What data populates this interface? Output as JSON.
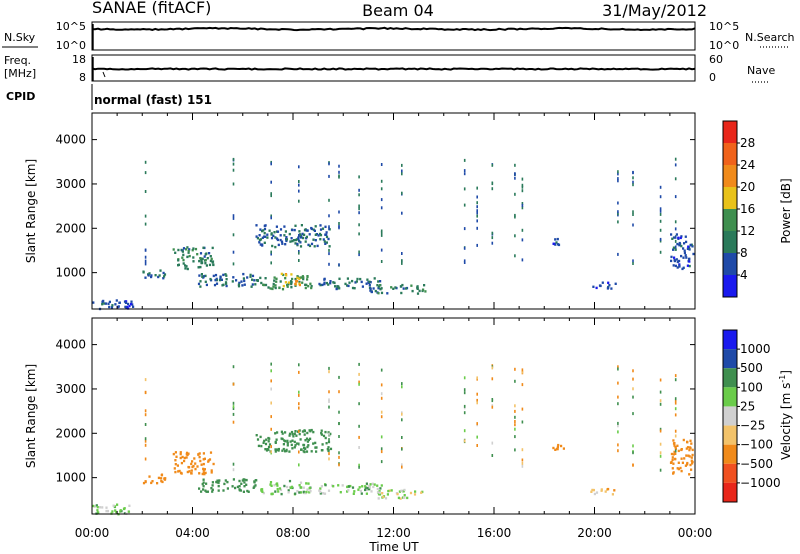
{
  "header": {
    "station": "SANAE (fitACF)",
    "beam": "Beam 04",
    "date": "31/May/2012"
  },
  "strip_nsky": {
    "left_label": "N.Sky",
    "right_label": "N.Search",
    "ticks_left": [
      "10^5",
      "10^0"
    ],
    "ticks_right": [
      "10^5",
      "10^0"
    ]
  },
  "strip_freq": {
    "left_label_line1": "Freq.",
    "left_label_line2": "[MHz]",
    "right_label": "Nave",
    "ticks_left": [
      "18",
      "8"
    ],
    "ticks_right": [
      "60",
      "0"
    ]
  },
  "cpid": {
    "label": "CPID",
    "value": "normal (fast) 151"
  },
  "colors": {
    "power": [
      "#1a1aee",
      "#1f4aa8",
      "#2a7a5a",
      "#3f8f4f",
      "#e8c21a",
      "#f08a1a",
      "#f0621a",
      "#e8261a"
    ],
    "velocity": [
      "#e8261a",
      "#f05020",
      "#f08a1a",
      "#f3c36a",
      "#d0d0d0",
      "#6acc4a",
      "#3f8f4f",
      "#1f4aa8",
      "#1a1aee"
    ]
  },
  "chart_data": [
    {
      "type": "heatmap",
      "panel": "power",
      "xlabel": "",
      "ylabel": "Slant Range [km]",
      "xlim": [
        0,
        24
      ],
      "ylim": [
        180,
        4600
      ],
      "yticks": [
        1000,
        2000,
        3000,
        4000
      ],
      "colorbar": {
        "label": "Power [dB]",
        "ticks": [
          4,
          8,
          12,
          16,
          20,
          24,
          28
        ],
        "range": [
          0,
          32
        ]
      },
      "regions": [
        {
          "x": [
            0.0,
            1.6
          ],
          "y": [
            180,
            420
          ],
          "value": 6
        },
        {
          "x": [
            2.0,
            3.0
          ],
          "y": [
            900,
            1100
          ],
          "value": 8
        },
        {
          "x": [
            3.2,
            4.8
          ],
          "y": [
            1100,
            1600
          ],
          "value": 10
        },
        {
          "x": [
            4.2,
            6.5
          ],
          "y": [
            700,
            1000
          ],
          "value": 8
        },
        {
          "x": [
            6.5,
            8.7
          ],
          "y": [
            650,
            950
          ],
          "value": 12
        },
        {
          "x": [
            7.5,
            8.3
          ],
          "y": [
            700,
            1000
          ],
          "value": 18
        },
        {
          "x": [
            6.5,
            9.5
          ],
          "y": [
            1600,
            2100
          ],
          "value": 8
        },
        {
          "x": [
            9.0,
            11.5
          ],
          "y": [
            650,
            900
          ],
          "value": 8
        },
        {
          "x": [
            11.0,
            13.3
          ],
          "y": [
            550,
            750
          ],
          "value": 10
        },
        {
          "x": [
            18.3,
            18.8
          ],
          "y": [
            1650,
            1800
          ],
          "value": 6
        },
        {
          "x": [
            19.8,
            20.8
          ],
          "y": [
            650,
            800
          ],
          "value": 6
        },
        {
          "x": [
            23.0,
            23.9
          ],
          "y": [
            1100,
            1900
          ],
          "value": 6
        }
      ]
    },
    {
      "type": "heatmap",
      "panel": "velocity",
      "xlabel": "Time UT",
      "ylabel": "Slant Range [km]",
      "xlim": [
        0,
        24
      ],
      "ylim": [
        180,
        4600
      ],
      "xticks": [
        "00:00",
        "04:00",
        "08:00",
        "12:00",
        "16:00",
        "20:00",
        "00:00"
      ],
      "yticks": [
        1000,
        2000,
        3000,
        4000
      ],
      "colorbar": {
        "label": "Velocity [m s^-1]",
        "ticks": [
          "1000",
          "500",
          "100",
          "25",
          "−25",
          "−100",
          "−500",
          "−1000"
        ]
      },
      "regions": [
        {
          "x": [
            0.0,
            1.6
          ],
          "y": [
            180,
            420
          ],
          "value": 60
        },
        {
          "x": [
            2.0,
            3.0
          ],
          "y": [
            900,
            1100
          ],
          "value": -300
        },
        {
          "x": [
            3.2,
            4.8
          ],
          "y": [
            1100,
            1600
          ],
          "value": -300
        },
        {
          "x": [
            4.2,
            6.5
          ],
          "y": [
            700,
            1000
          ],
          "value": 300
        },
        {
          "x": [
            6.5,
            8.7
          ],
          "y": [
            650,
            950
          ],
          "value": 60
        },
        {
          "x": [
            6.5,
            9.5
          ],
          "y": [
            1600,
            2100
          ],
          "value": 300
        },
        {
          "x": [
            9.0,
            11.5
          ],
          "y": [
            650,
            900
          ],
          "value": 60
        },
        {
          "x": [
            11.0,
            13.3
          ],
          "y": [
            550,
            750
          ],
          "value": 10
        },
        {
          "x": [
            18.3,
            18.8
          ],
          "y": [
            1650,
            1800
          ],
          "value": -300
        },
        {
          "x": [
            19.8,
            20.8
          ],
          "y": [
            650,
            800
          ],
          "value": -60
        },
        {
          "x": [
            23.0,
            23.9
          ],
          "y": [
            1100,
            1900
          ],
          "value": -300
        }
      ]
    }
  ]
}
